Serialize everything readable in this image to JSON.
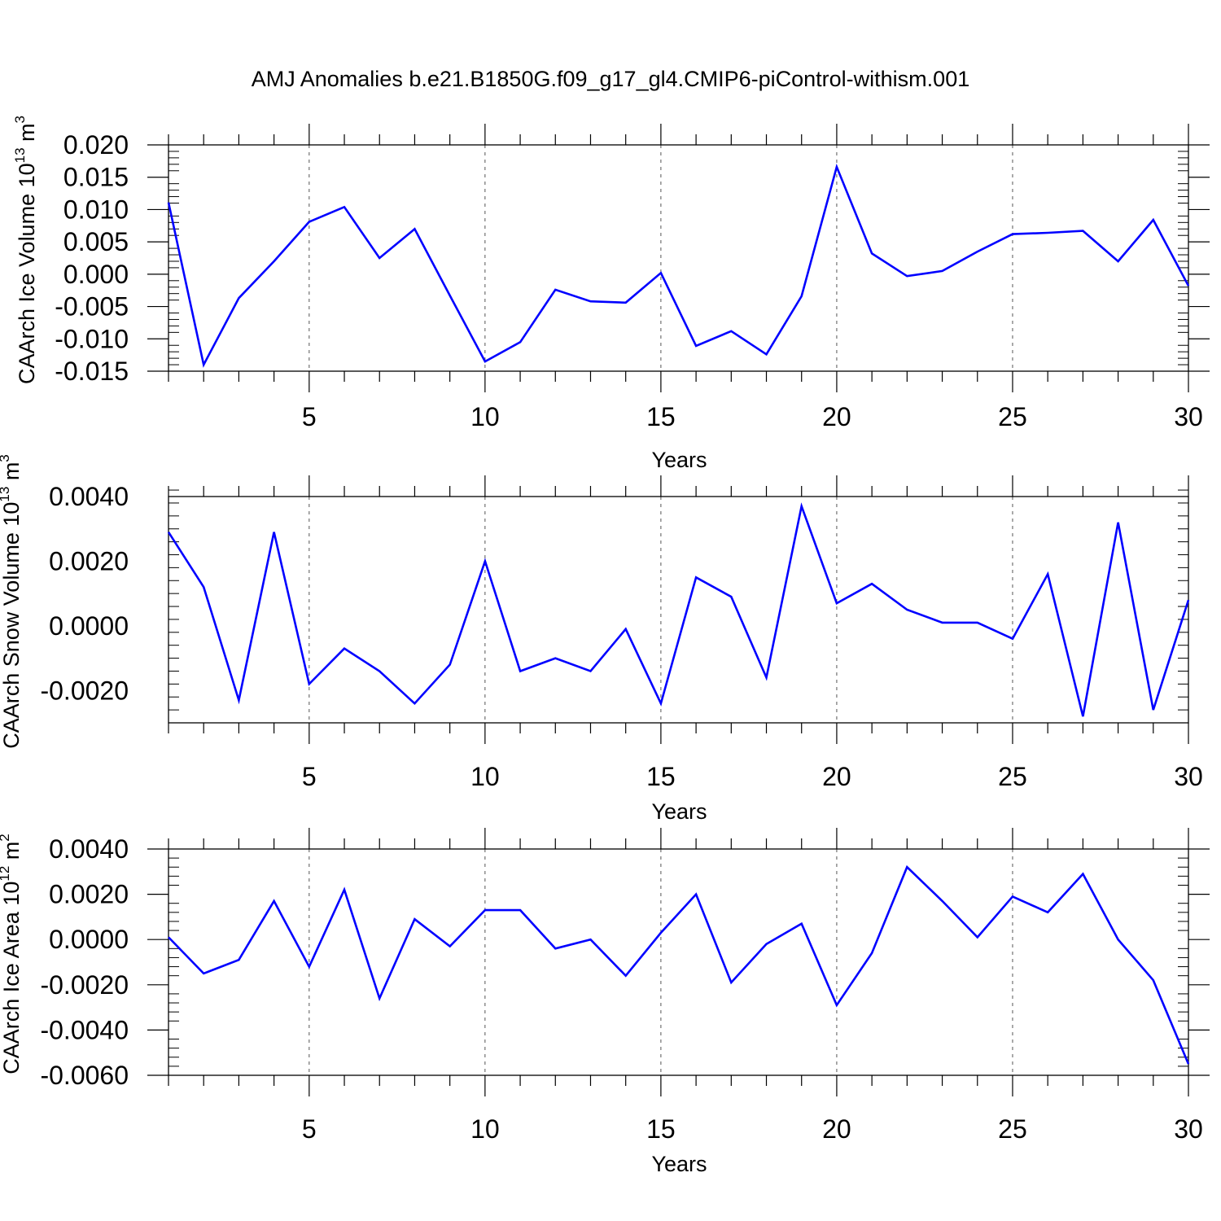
{
  "title": "AMJ Anomalies b.e21.B1850G.f09_g17_gl4.CMIP6-piControl-withism.001",
  "colors": {
    "line": "#0000ff",
    "axis": "#000000",
    "grid": "#555555",
    "background": "#ffffff"
  },
  "chart_data": [
    {
      "type": "line",
      "xlabel": "Years",
      "ylabel": {
        "text": "CAArch Ice Volume 10",
        "sup1": "13",
        "mid": " m",
        "sup2": "3"
      },
      "xlim": [
        1,
        30
      ],
      "ylim": [
        -0.015,
        0.02
      ],
      "x_ticks": [
        5,
        10,
        15,
        20,
        25,
        30
      ],
      "x_tick_labels": [
        "5",
        "10",
        "15",
        "20",
        "25",
        "30"
      ],
      "y_ticks": [
        -0.015,
        -0.01,
        -0.005,
        0.0,
        0.005,
        0.01,
        0.015,
        0.02
      ],
      "y_tick_labels": [
        "-0.015",
        "-0.010",
        "-0.005",
        "0.000",
        "0.005",
        "0.010",
        "0.015",
        "0.020"
      ],
      "grid": "vertical dashed at major x ticks",
      "x": [
        1,
        2,
        3,
        4,
        5,
        6,
        7,
        8,
        9,
        10,
        11,
        12,
        13,
        14,
        15,
        16,
        17,
        18,
        19,
        20,
        21,
        22,
        23,
        24,
        25,
        26,
        27,
        28,
        29,
        30
      ],
      "series": [
        {
          "values": [
            0.0111,
            -0.014,
            -0.0037,
            0.002,
            0.0081,
            0.0104,
            0.0025,
            0.007,
            -0.0033,
            -0.0135,
            -0.0105,
            -0.0024,
            -0.0042,
            -0.0044,
            0.0002,
            -0.0111,
            -0.0088,
            -0.0124,
            -0.0034,
            0.0166,
            0.0032,
            -0.0003,
            0.0005,
            0.0035,
            0.0062,
            0.0064,
            0.0067,
            0.002,
            0.0084,
            -0.0018
          ]
        }
      ]
    },
    {
      "type": "line",
      "xlabel": "Years",
      "ylabel": {
        "text": "CAArch Snow Volume 10",
        "sup1": "13",
        "mid": " m",
        "sup2": "3"
      },
      "xlim": [
        1,
        30
      ],
      "ylim": [
        -0.003,
        0.004
      ],
      "x_ticks": [
        5,
        10,
        15,
        20,
        25,
        30
      ],
      "x_tick_labels": [
        "5",
        "10",
        "15",
        "20",
        "25",
        "30"
      ],
      "y_ticks": [
        -0.002,
        0.0,
        0.002,
        0.004
      ],
      "y_tick_labels": [
        "-0.0020",
        "0.0000",
        "0.0020",
        "0.0040"
      ],
      "grid": "vertical dashed at major x ticks",
      "x": [
        1,
        2,
        3,
        4,
        5,
        6,
        7,
        8,
        9,
        10,
        11,
        12,
        13,
        14,
        15,
        16,
        17,
        18,
        19,
        20,
        21,
        22,
        23,
        24,
        25,
        26,
        27,
        28,
        29,
        30
      ],
      "series": [
        {
          "values": [
            0.0029,
            0.0012,
            -0.0023,
            0.0029,
            -0.0018,
            -0.0007,
            -0.0014,
            -0.0024,
            -0.0012,
            0.002,
            -0.0014,
            -0.001,
            -0.0014,
            -0.0001,
            -0.0024,
            0.0015,
            0.0009,
            -0.0016,
            0.0037,
            0.0007,
            0.0013,
            0.0005,
            0.0001,
            0.0001,
            -0.0004,
            0.0016,
            -0.0028,
            0.0032,
            -0.0026,
            0.0008
          ]
        }
      ]
    },
    {
      "type": "line",
      "xlabel": "Years",
      "ylabel": {
        "text": "CAArch Ice Area 10",
        "sup1": "12",
        "mid": " m",
        "sup2": "2"
      },
      "xlim": [
        1,
        30
      ],
      "ylim": [
        -0.006,
        0.004
      ],
      "x_ticks": [
        5,
        10,
        15,
        20,
        25,
        30
      ],
      "x_tick_labels": [
        "5",
        "10",
        "15",
        "20",
        "25",
        "30"
      ],
      "y_ticks": [
        -0.006,
        -0.004,
        -0.002,
        0.0,
        0.002,
        0.004
      ],
      "y_tick_labels": [
        "-0.0060",
        "-0.0040",
        "-0.0020",
        "0.0000",
        "0.0020",
        "0.0040"
      ],
      "grid": "vertical dashed at major x ticks",
      "x": [
        1,
        2,
        3,
        4,
        5,
        6,
        7,
        8,
        9,
        10,
        11,
        12,
        13,
        14,
        15,
        16,
        17,
        18,
        19,
        20,
        21,
        22,
        23,
        24,
        25,
        26,
        27,
        28,
        29,
        30
      ],
      "series": [
        {
          "values": [
            0.0001,
            -0.0015,
            -0.0009,
            0.0017,
            -0.0012,
            0.0022,
            -0.0026,
            0.0009,
            -0.0003,
            0.0013,
            0.0013,
            -0.0004,
            0.0,
            -0.0016,
            0.0003,
            0.002,
            -0.0019,
            -0.0002,
            0.0007,
            -0.0029,
            -0.0006,
            0.0032,
            0.0017,
            0.0001,
            0.0019,
            0.0012,
            0.0029,
            0.0,
            -0.0018,
            -0.0055
          ]
        }
      ]
    }
  ]
}
